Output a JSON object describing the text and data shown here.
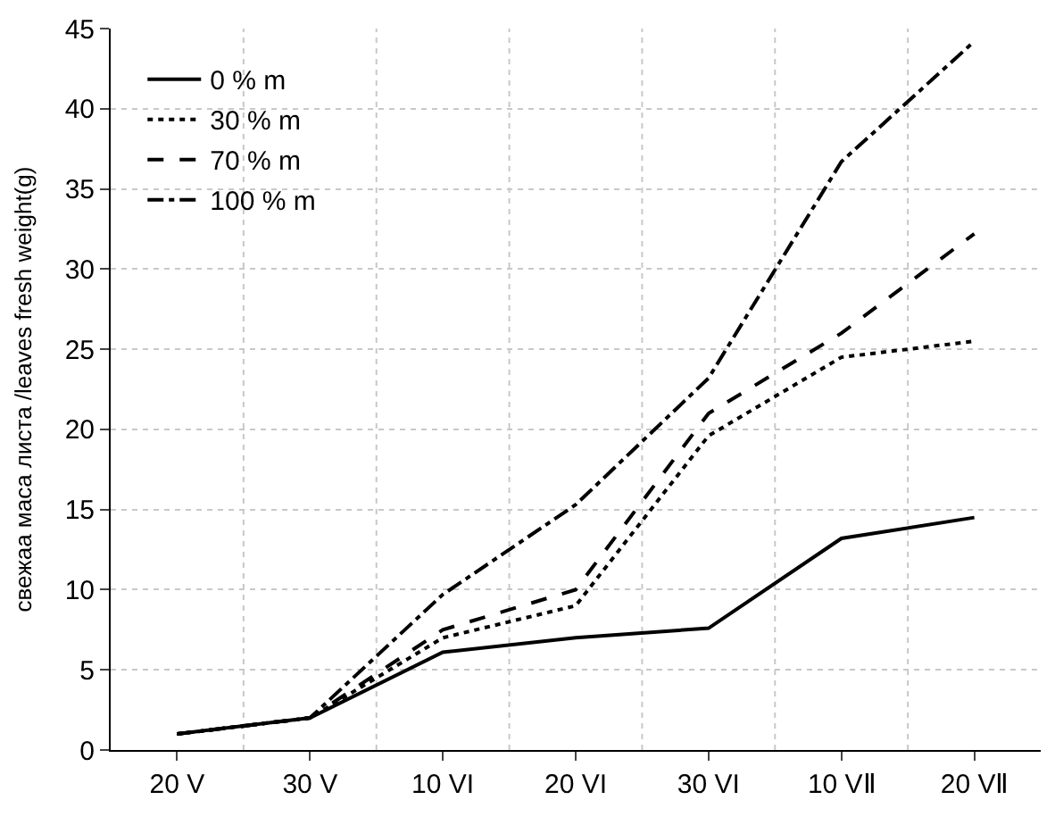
{
  "chart_data": {
    "type": "line",
    "ylabel": "свежаа маса листа /leaves fresh weight(g)",
    "categories": [
      "20 V",
      "30 V",
      "10 VI",
      "20 VI",
      "30 VI",
      "10 VⅡ",
      "20 VⅡ"
    ],
    "ylim": [
      0,
      45
    ],
    "yticks": [
      0,
      5,
      10,
      15,
      20,
      25,
      30,
      35,
      40,
      45
    ],
    "grid": true,
    "legend": "top left",
    "marker": "none",
    "series": [
      {
        "name": "0 % m",
        "color": "#000000",
        "line_style": "solid",
        "values": [
          1.0,
          2.0,
          6.1,
          7.0,
          7.6,
          13.2,
          14.5
        ]
      },
      {
        "name": "30 % m",
        "color": "#000000",
        "line_style": "dotted",
        "values": [
          1.0,
          2.0,
          7.0,
          9.0,
          19.6,
          24.5,
          25.5
        ]
      },
      {
        "name": "70 % m",
        "color": "#000000",
        "line_style": "dashed",
        "values": [
          1.0,
          2.0,
          7.5,
          10.0,
          21.0,
          26.0,
          32.2
        ]
      },
      {
        "name": "100 % m",
        "color": "#000000",
        "line_style": "dashdot",
        "values": [
          1.0,
          2.0,
          9.7,
          15.3,
          23.2,
          36.7,
          44.2
        ]
      }
    ]
  }
}
